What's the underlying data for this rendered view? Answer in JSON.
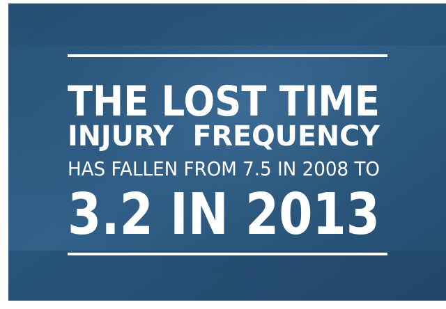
{
  "headline": {
    "lines": [
      "THE LOST TIME",
      "INJURY  FREQUENCY",
      "HAS FALLEN FROM 7.5 IN 2008 TO",
      "3.2 IN 2013"
    ]
  }
}
